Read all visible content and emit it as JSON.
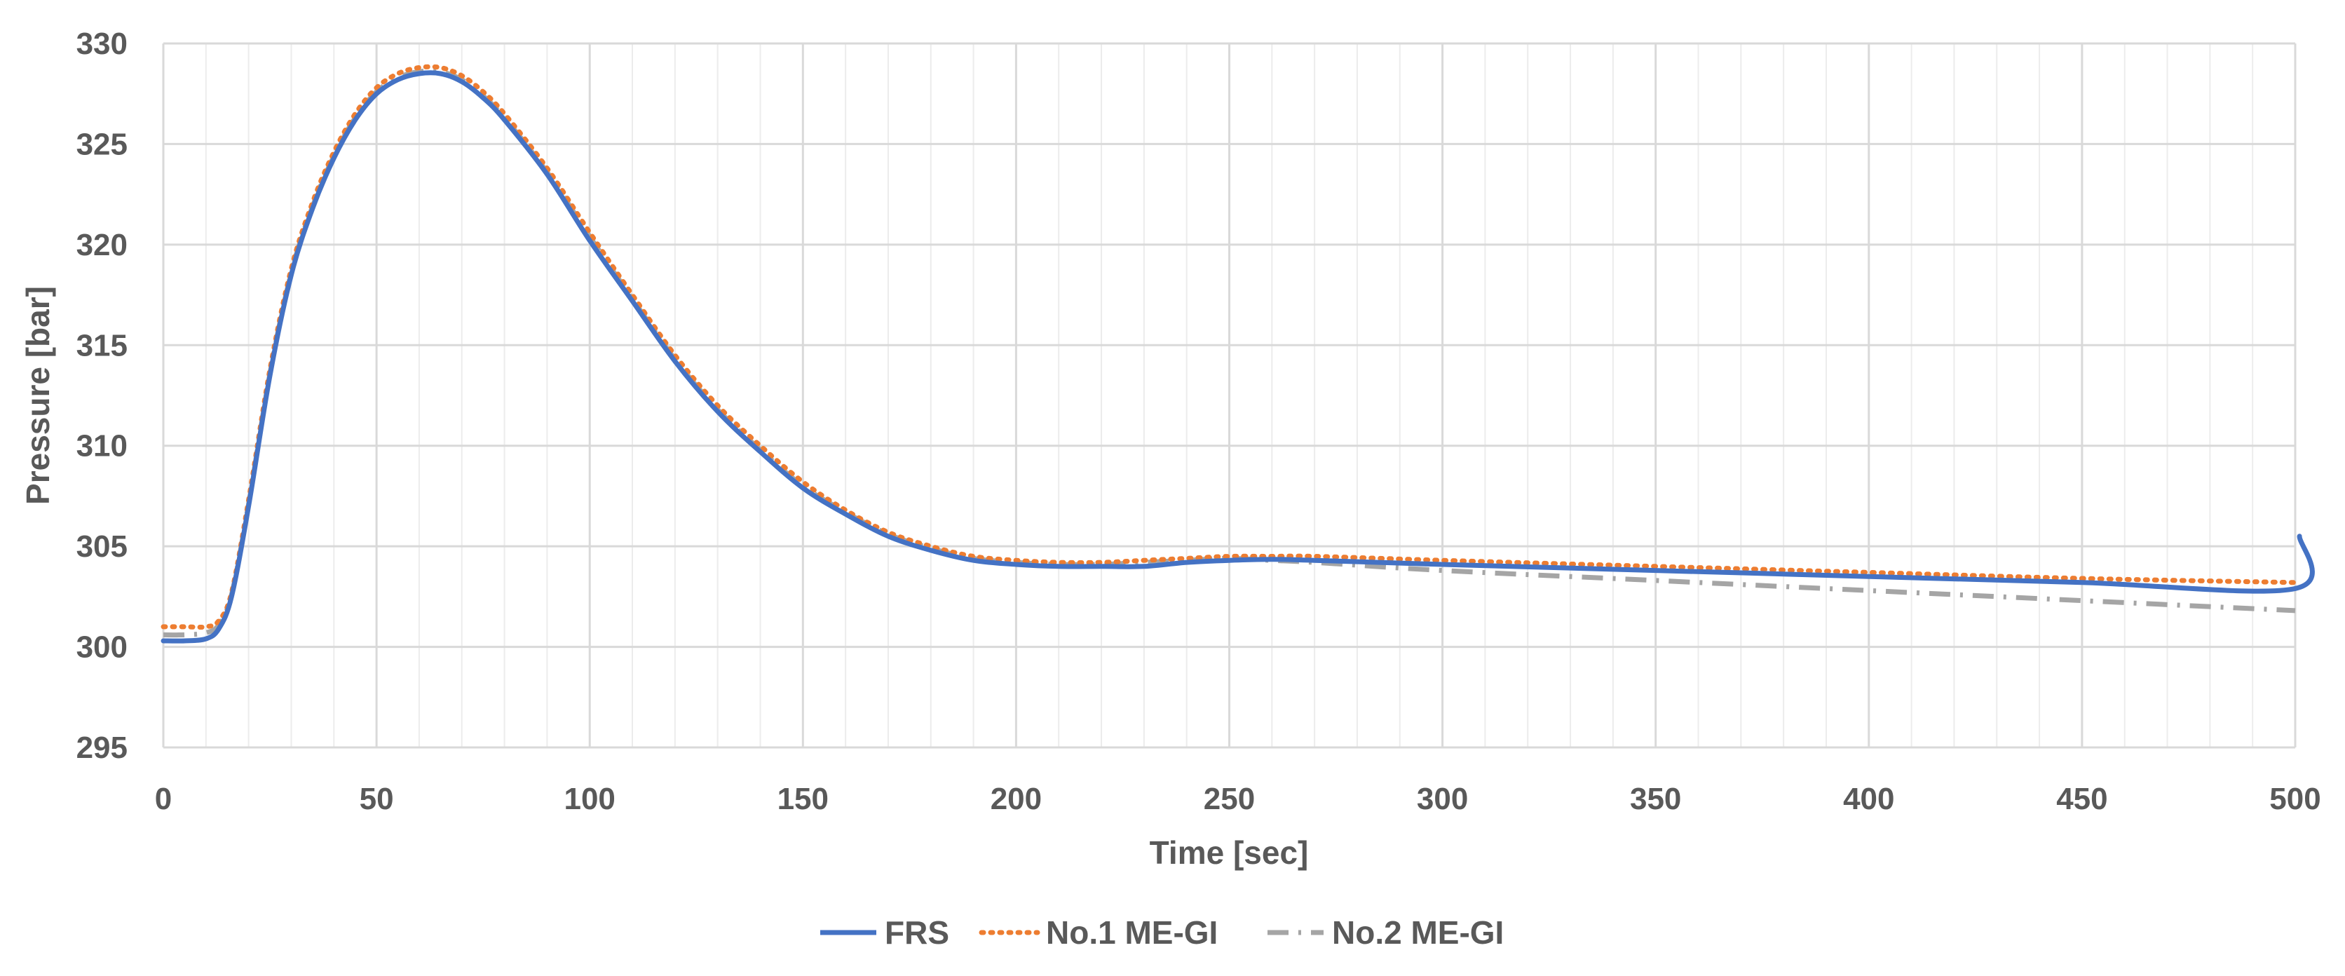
{
  "chart_data": {
    "type": "line",
    "title": "",
    "xlabel": "Time [sec]",
    "ylabel": "Pressure [bar]",
    "xlim": [
      0,
      500
    ],
    "ylim": [
      295,
      330
    ],
    "xticks": [
      "0",
      "50",
      "100",
      "150",
      "200",
      "250",
      "300",
      "350",
      "400",
      "450",
      "500"
    ],
    "yticks": [
      "295",
      "300",
      "305",
      "310",
      "315",
      "320",
      "325",
      "330"
    ],
    "grid": true,
    "minor_grid_x": true,
    "legend_position": "bottom",
    "series": [
      {
        "name": "FRS",
        "color": "#4472C4",
        "style": "solid",
        "points": [
          [
            0,
            300.3
          ],
          [
            5,
            300.3
          ],
          [
            10,
            300.4
          ],
          [
            13,
            300.9
          ],
          [
            16,
            302.5
          ],
          [
            20,
            307
          ],
          [
            25,
            313.5
          ],
          [
            30,
            318.5
          ],
          [
            35,
            321.8
          ],
          [
            40,
            324.3
          ],
          [
            45,
            326.2
          ],
          [
            50,
            327.5
          ],
          [
            55,
            328.2
          ],
          [
            60,
            328.5
          ],
          [
            65,
            328.5
          ],
          [
            70,
            328.1
          ],
          [
            75,
            327.3
          ],
          [
            80,
            326.2
          ],
          [
            90,
            323.5
          ],
          [
            100,
            320.2
          ],
          [
            110,
            317.2
          ],
          [
            120,
            314.2
          ],
          [
            130,
            311.7
          ],
          [
            140,
            309.7
          ],
          [
            150,
            307.9
          ],
          [
            160,
            306.6
          ],
          [
            170,
            305.5
          ],
          [
            180,
            304.8
          ],
          [
            190,
            304.3
          ],
          [
            200,
            304.1
          ],
          [
            210,
            304
          ],
          [
            220,
            304
          ],
          [
            230,
            304
          ],
          [
            240,
            304.2
          ],
          [
            250,
            304.3
          ],
          [
            260,
            304.35
          ],
          [
            270,
            304.3
          ],
          [
            300,
            304.1
          ],
          [
            350,
            303.8
          ],
          [
            400,
            303.5
          ],
          [
            450,
            303.2
          ],
          [
            500,
            302.9
          ],
          [
            501,
            305.5
          ]
        ]
      },
      {
        "name": "No.1 ME-GI",
        "color": "#ED7D31",
        "style": "dotted",
        "points": [
          [
            0,
            301
          ],
          [
            5,
            301
          ],
          [
            10,
            301
          ],
          [
            13,
            301.3
          ],
          [
            16,
            302.7
          ],
          [
            20,
            307.3
          ],
          [
            25,
            313.8
          ],
          [
            30,
            318.8
          ],
          [
            35,
            322.1
          ],
          [
            40,
            324.6
          ],
          [
            45,
            326.5
          ],
          [
            50,
            327.8
          ],
          [
            55,
            328.5
          ],
          [
            60,
            328.8
          ],
          [
            65,
            328.8
          ],
          [
            70,
            328.4
          ],
          [
            75,
            327.6
          ],
          [
            80,
            326.5
          ],
          [
            90,
            323.8
          ],
          [
            100,
            320.6
          ],
          [
            110,
            317.5
          ],
          [
            120,
            314.5
          ],
          [
            130,
            312
          ],
          [
            140,
            310
          ],
          [
            150,
            308.2
          ],
          [
            160,
            306.8
          ],
          [
            170,
            305.7
          ],
          [
            180,
            305
          ],
          [
            190,
            304.5
          ],
          [
            200,
            304.3
          ],
          [
            210,
            304.2
          ],
          [
            220,
            304.2
          ],
          [
            230,
            304.3
          ],
          [
            240,
            304.4
          ],
          [
            250,
            304.5
          ],
          [
            260,
            304.5
          ],
          [
            270,
            304.5
          ],
          [
            300,
            304.3
          ],
          [
            350,
            304
          ],
          [
            400,
            303.7
          ],
          [
            450,
            303.4
          ],
          [
            500,
            303.2
          ]
        ]
      },
      {
        "name": "No.2 ME-GI",
        "color": "#A5A5A5",
        "style": "dash-dot",
        "points": [
          [
            0,
            300.6
          ],
          [
            5,
            300.6
          ],
          [
            10,
            300.7
          ],
          [
            13,
            301.1
          ],
          [
            16,
            302.6
          ],
          [
            20,
            307.1
          ],
          [
            25,
            313.6
          ],
          [
            30,
            318.6
          ],
          [
            35,
            321.9
          ],
          [
            40,
            324.4
          ],
          [
            45,
            326.3
          ],
          [
            50,
            327.6
          ],
          [
            55,
            328.3
          ],
          [
            60,
            328.6
          ],
          [
            65,
            328.6
          ],
          [
            70,
            328.2
          ],
          [
            75,
            327.4
          ],
          [
            80,
            326.3
          ],
          [
            90,
            323.6
          ],
          [
            100,
            320.4
          ],
          [
            110,
            317.3
          ],
          [
            120,
            314.3
          ],
          [
            130,
            311.8
          ],
          [
            140,
            309.8
          ],
          [
            150,
            308
          ],
          [
            160,
            306.7
          ],
          [
            170,
            305.6
          ],
          [
            180,
            304.9
          ],
          [
            190,
            304.4
          ],
          [
            200,
            304.2
          ],
          [
            210,
            304.1
          ],
          [
            220,
            304.1
          ],
          [
            230,
            304.2
          ],
          [
            240,
            304.3
          ],
          [
            250,
            304.4
          ],
          [
            260,
            304.3
          ],
          [
            270,
            304.2
          ],
          [
            300,
            303.8
          ],
          [
            350,
            303.3
          ],
          [
            400,
            302.8
          ],
          [
            450,
            302.3
          ],
          [
            500,
            301.8
          ]
        ]
      }
    ]
  }
}
